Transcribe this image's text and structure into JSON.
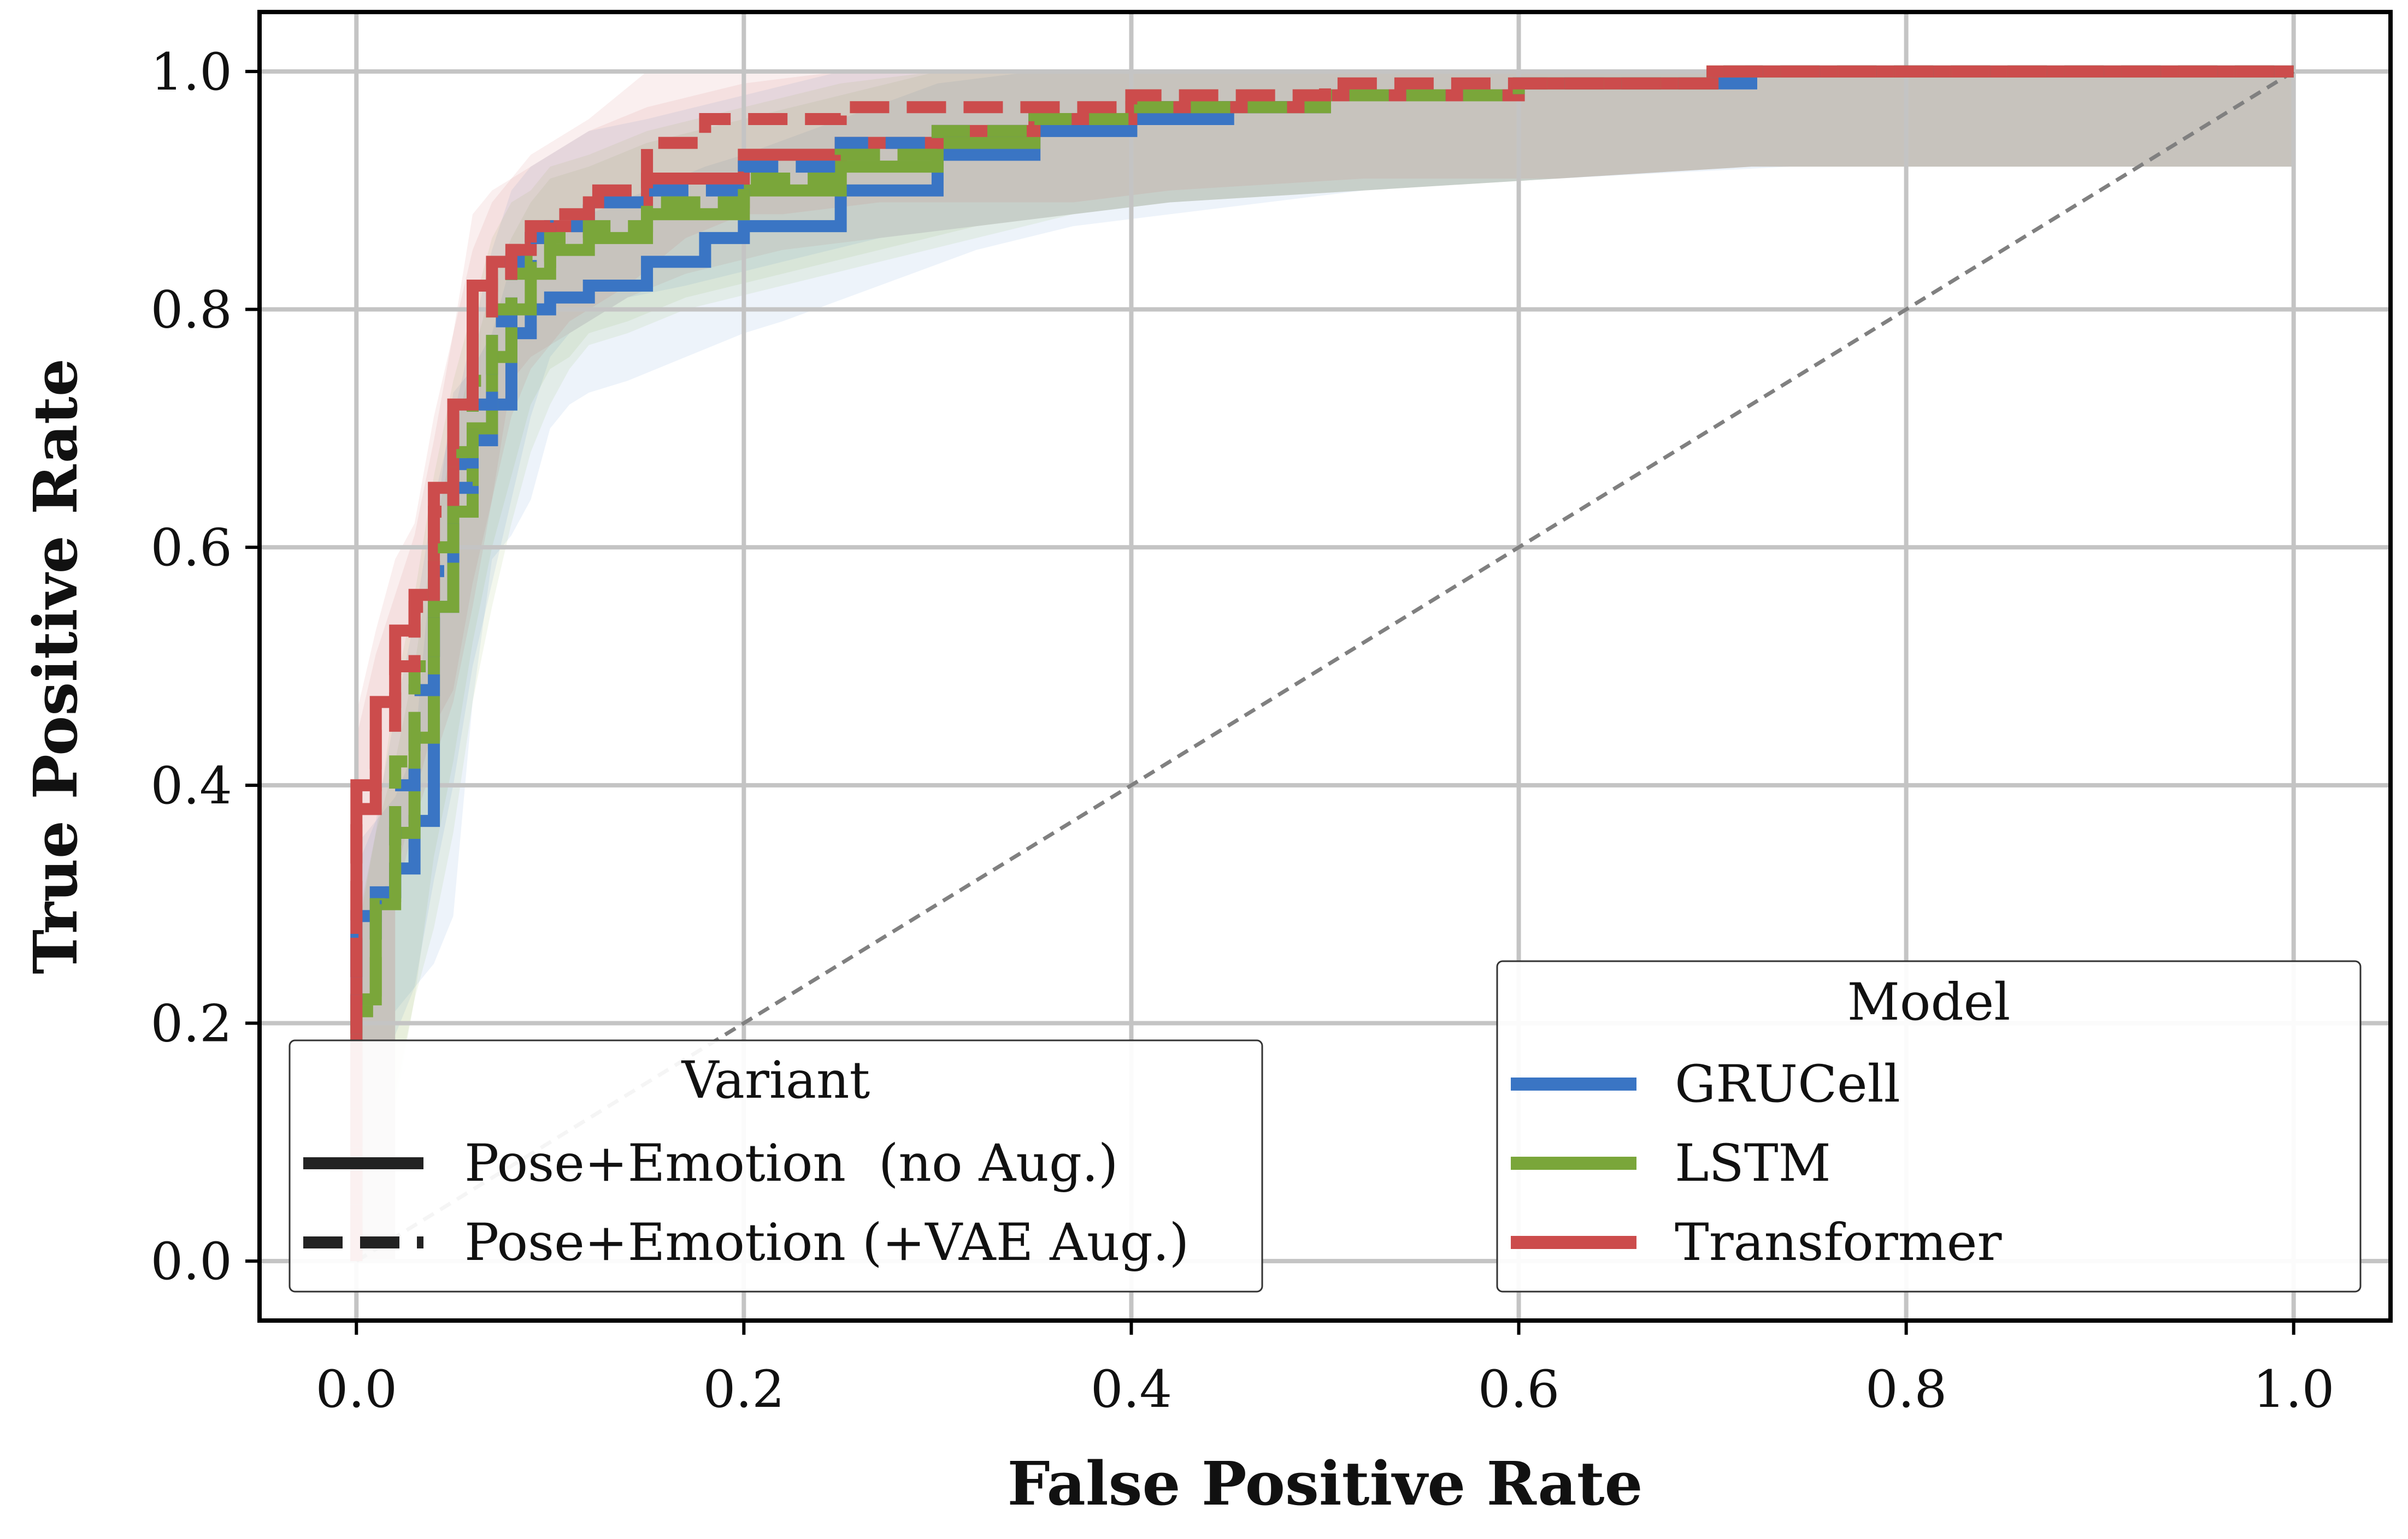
{
  "chart_data": {
    "type": "line",
    "title": "",
    "xlabel": "False Positive Rate",
    "ylabel": "True Positive Rate",
    "xlim": [
      -0.05,
      1.05
    ],
    "ylim": [
      -0.05,
      1.05
    ],
    "xticks": [
      0.0,
      0.2,
      0.4,
      0.6,
      0.8,
      1.0
    ],
    "yticks": [
      0.0,
      0.2,
      0.4,
      0.6,
      0.8,
      1.0
    ],
    "xtick_labels": [
      "0.0",
      "0.2",
      "0.4",
      "0.6",
      "0.8",
      "1.0"
    ],
    "ytick_labels": [
      "0.0",
      "0.2",
      "0.4",
      "0.6",
      "0.8",
      "1.0"
    ],
    "grid": true,
    "chance_line": {
      "x": [
        0,
        1
      ],
      "y": [
        0,
        1
      ],
      "color": "#808080",
      "style": "dotted"
    },
    "legends": {
      "variant": {
        "title": "Variant",
        "placement": "lower-left",
        "entries": [
          {
            "label": "Pose+Emotion  (no Aug.)",
            "style": "solid"
          },
          {
            "label": "Pose+Emotion (+VAE Aug.)",
            "style": "dashed"
          }
        ]
      },
      "model": {
        "title": "Model",
        "placement": "lower-right",
        "entries": [
          {
            "label": "GRUCell",
            "color": "#3a75c4"
          },
          {
            "label": "LSTM",
            "color": "#7aa63a"
          },
          {
            "label": "Transformer",
            "color": "#cc4c4c"
          }
        ]
      }
    },
    "series": [
      {
        "name": "GRUCell",
        "variant": "no Aug.",
        "color": "#3a75c4",
        "style": "solid",
        "x": [
          0,
          0,
          0.01,
          0.02,
          0.03,
          0.04,
          0.05,
          0.06,
          0.07,
          0.08,
          0.09,
          0.1,
          0.12,
          0.15,
          0.18,
          0.2,
          0.25,
          0.3,
          0.35,
          0.4,
          0.45,
          0.5,
          0.6,
          0.72,
          1.0
        ],
        "y": [
          0,
          0.29,
          0.31,
          0.33,
          0.37,
          0.55,
          0.67,
          0.69,
          0.72,
          0.78,
          0.8,
          0.81,
          0.82,
          0.84,
          0.86,
          0.87,
          0.9,
          0.93,
          0.95,
          0.96,
          0.97,
          0.98,
          0.99,
          1.0,
          1.0
        ]
      },
      {
        "name": "LSTM",
        "variant": "no Aug.",
        "color": "#7aa63a",
        "style": "solid",
        "x": [
          0,
          0,
          0.01,
          0.02,
          0.03,
          0.04,
          0.05,
          0.06,
          0.07,
          0.08,
          0.09,
          0.1,
          0.12,
          0.15,
          0.2,
          0.25,
          0.3,
          0.35,
          0.4,
          0.5,
          0.6,
          0.7,
          1.0
        ],
        "y": [
          0,
          0.22,
          0.3,
          0.36,
          0.44,
          0.55,
          0.63,
          0.7,
          0.76,
          0.8,
          0.83,
          0.85,
          0.86,
          0.88,
          0.9,
          0.92,
          0.94,
          0.96,
          0.97,
          0.98,
          0.99,
          1.0,
          1.0
        ]
      },
      {
        "name": "Transformer",
        "variant": "no Aug.",
        "color": "#cc4c4c",
        "style": "solid",
        "x": [
          0,
          0,
          0.01,
          0.02,
          0.03,
          0.04,
          0.05,
          0.06,
          0.07,
          0.08,
          0.09,
          0.1,
          0.12,
          0.15,
          0.2,
          0.25,
          0.3,
          0.35,
          0.4,
          0.5,
          0.6,
          0.7,
          1.0
        ],
        "y": [
          0,
          0.4,
          0.47,
          0.53,
          0.56,
          0.65,
          0.72,
          0.82,
          0.84,
          0.85,
          0.86,
          0.87,
          0.89,
          0.91,
          0.93,
          0.94,
          0.95,
          0.96,
          0.97,
          0.98,
          0.99,
          1.0,
          1.0
        ]
      },
      {
        "name": "GRUCell",
        "variant": "+VAE Aug.",
        "color": "#3a75c4",
        "style": "dashed",
        "x": [
          0,
          0,
          0.01,
          0.02,
          0.03,
          0.04,
          0.05,
          0.06,
          0.07,
          0.08,
          0.09,
          0.1,
          0.12,
          0.15,
          0.2,
          0.25,
          0.3,
          0.35,
          0.4,
          0.5,
          0.6,
          0.7,
          1.0
        ],
        "y": [
          0,
          0.27,
          0.31,
          0.4,
          0.48,
          0.58,
          0.65,
          0.72,
          0.79,
          0.84,
          0.86,
          0.87,
          0.89,
          0.9,
          0.92,
          0.94,
          0.95,
          0.96,
          0.97,
          0.98,
          0.99,
          1.0,
          1.0
        ]
      },
      {
        "name": "LSTM",
        "variant": "+VAE Aug.",
        "color": "#7aa63a",
        "style": "dashed",
        "x": [
          0,
          0,
          0.01,
          0.02,
          0.03,
          0.04,
          0.05,
          0.06,
          0.07,
          0.08,
          0.09,
          0.1,
          0.12,
          0.15,
          0.2,
          0.25,
          0.3,
          0.35,
          0.4,
          0.5,
          0.6,
          0.7,
          1.0
        ],
        "y": [
          0,
          0.21,
          0.3,
          0.42,
          0.5,
          0.6,
          0.68,
          0.74,
          0.8,
          0.83,
          0.84,
          0.86,
          0.87,
          0.89,
          0.91,
          0.93,
          0.95,
          0.96,
          0.97,
          0.98,
          0.99,
          1.0,
          1.0
        ]
      },
      {
        "name": "Transformer",
        "variant": "+VAE Aug.",
        "color": "#cc4c4c",
        "style": "dashed",
        "x": [
          0,
          0,
          0.01,
          0.02,
          0.03,
          0.04,
          0.05,
          0.06,
          0.07,
          0.08,
          0.09,
          0.1,
          0.12,
          0.15,
          0.18,
          0.2,
          0.25,
          0.3,
          0.35,
          0.4,
          0.5,
          0.6,
          0.7,
          1.0
        ],
        "y": [
          0,
          0.38,
          0.45,
          0.5,
          0.55,
          0.63,
          0.72,
          0.79,
          0.83,
          0.85,
          0.87,
          0.88,
          0.9,
          0.94,
          0.96,
          0.96,
          0.97,
          0.97,
          0.97,
          0.98,
          0.99,
          0.99,
          1.0,
          1.0
        ]
      }
    ]
  }
}
